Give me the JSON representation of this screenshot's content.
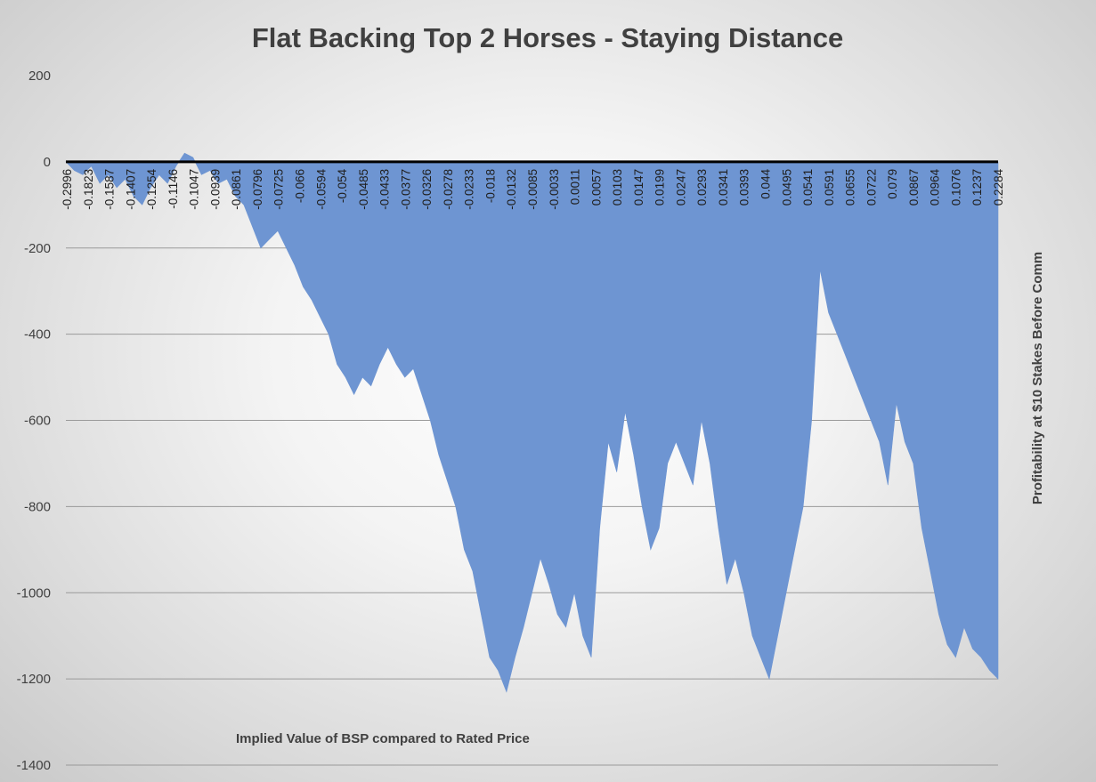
{
  "chart_data": {
    "type": "area",
    "title": "Flat Backing Top 2 Horses - Staying Distance",
    "xlabel": "Implied Value of BSP compared to Rated Price",
    "ylabel": "Profitability at $10 Stakes Before Comm",
    "ylim": [
      -1400,
      200
    ],
    "yticks": [
      200,
      0,
      -200,
      -400,
      -600,
      -800,
      -1000,
      -1200,
      -1400
    ],
    "grid": true,
    "legend": "none",
    "series_color": "#6e95d2",
    "zero_line_color": "#000000",
    "x_tick_labels": [
      "-0.2996",
      "-0.1823",
      "-0.1587",
      "-0.1407",
      "-0.1254",
      "-0.1146",
      "-0.1047",
      "-0.0939",
      "-0.0861",
      "-0.0796",
      "-0.0725",
      "-0.066",
      "-0.0594",
      "-0.054",
      "-0.0485",
      "-0.0433",
      "-0.0377",
      "-0.0326",
      "-0.0278",
      "-0.0233",
      "-0.018",
      "-0.0132",
      "-0.0085",
      "-0.0033",
      "0.0011",
      "0.0057",
      "0.0103",
      "0.0147",
      "0.0199",
      "0.0247",
      "0.0293",
      "0.0341",
      "0.0393",
      "0.044",
      "0.0495",
      "0.0541",
      "0.0591",
      "0.0655",
      "0.0722",
      "0.079",
      "0.0867",
      "0.0964",
      "0.1076",
      "0.1237",
      "0.2284"
    ],
    "series": [
      {
        "values": [
          0,
          -20,
          -30,
          -10,
          -50,
          -30,
          -60,
          -40,
          -80,
          -100,
          -60,
          -30,
          -50,
          -10,
          20,
          10,
          -30,
          -20,
          -50,
          -40,
          -80,
          -100,
          -150,
          -200,
          -180,
          -160,
          -200,
          -240,
          -290,
          -320,
          -360,
          -400,
          -470,
          -500,
          -540,
          -500,
          -520,
          -470,
          -430,
          -470,
          -500,
          -480,
          -540,
          -600,
          -680,
          -740,
          -800,
          -900,
          -950,
          -1050,
          -1150,
          -1180,
          -1230,
          -1150,
          -1080,
          -1000,
          -920,
          -980,
          -1050,
          -1080,
          -1000,
          -1100,
          -1150,
          -850,
          -650,
          -720,
          -580,
          -680,
          -800,
          -900,
          -850,
          -700,
          -650,
          -700,
          -750,
          -600,
          -700,
          -850,
          -980,
          -920,
          -1000,
          -1100,
          -1150,
          -1200,
          -1100,
          -1000,
          -900,
          -800,
          -600,
          -250,
          -350,
          -400,
          -450,
          -500,
          -550,
          -600,
          -650,
          -750,
          -560,
          -650,
          -700,
          -850,
          -950,
          -1050,
          -1120,
          -1150,
          -1080,
          -1130,
          -1150,
          -1180,
          -1200
        ]
      }
    ]
  }
}
